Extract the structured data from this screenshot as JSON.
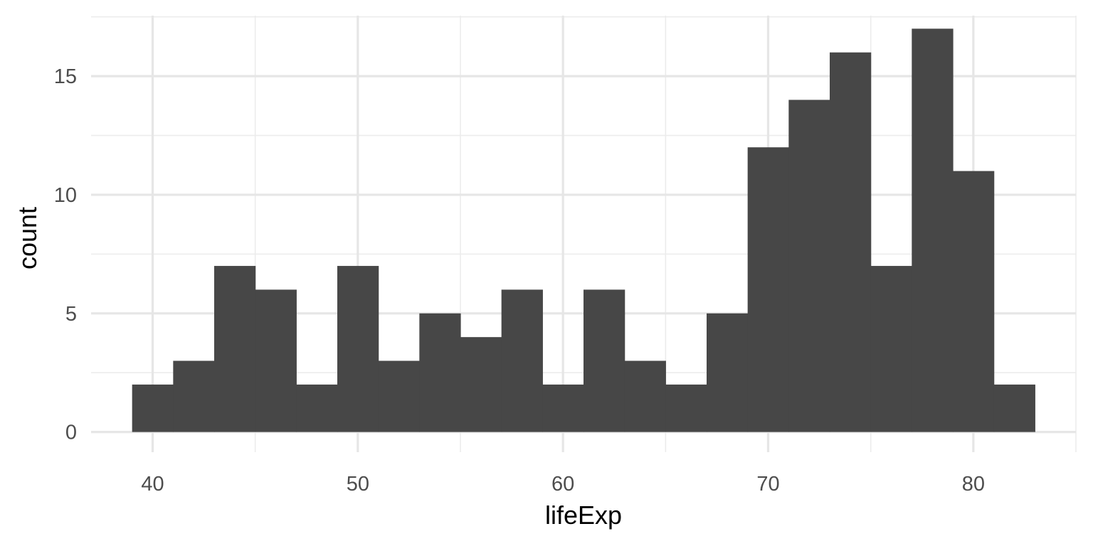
{
  "chart_data": {
    "type": "bar",
    "title": "",
    "xlabel": "lifeExp",
    "ylabel": "count",
    "xlim": [
      37.0,
      85.0
    ],
    "ylim": [
      -0.85,
      17.55
    ],
    "x_ticks": [
      40,
      50,
      60,
      70,
      80
    ],
    "x_tick_labels": [
      "40",
      "50",
      "60",
      "70",
      "80"
    ],
    "y_ticks": [
      0,
      5,
      10,
      15
    ],
    "y_tick_labels": [
      "0",
      "5",
      "10",
      "15"
    ],
    "grid": true,
    "legend": "none",
    "bar_color": "#474747",
    "bins": [
      {
        "x0": 39,
        "x1": 41,
        "count": 2
      },
      {
        "x0": 41,
        "x1": 43,
        "count": 3
      },
      {
        "x0": 43,
        "x1": 45,
        "count": 7
      },
      {
        "x0": 45,
        "x1": 47,
        "count": 6
      },
      {
        "x0": 47,
        "x1": 49,
        "count": 2
      },
      {
        "x0": 49,
        "x1": 51,
        "count": 7
      },
      {
        "x0": 51,
        "x1": 53,
        "count": 3
      },
      {
        "x0": 53,
        "x1": 55,
        "count": 5
      },
      {
        "x0": 55,
        "x1": 57,
        "count": 4
      },
      {
        "x0": 57,
        "x1": 59,
        "count": 6
      },
      {
        "x0": 59,
        "x1": 61,
        "count": 2
      },
      {
        "x0": 61,
        "x1": 63,
        "count": 6
      },
      {
        "x0": 63,
        "x1": 65,
        "count": 3
      },
      {
        "x0": 65,
        "x1": 67,
        "count": 2
      },
      {
        "x0": 67,
        "x1": 69,
        "count": 5
      },
      {
        "x0": 69,
        "x1": 71,
        "count": 12
      },
      {
        "x0": 71,
        "x1": 73,
        "count": 14
      },
      {
        "x0": 73,
        "x1": 75,
        "count": 16
      },
      {
        "x0": 75,
        "x1": 77,
        "count": 7
      },
      {
        "x0": 77,
        "x1": 79,
        "count": 17
      },
      {
        "x0": 79,
        "x1": 81,
        "count": 11
      },
      {
        "x0": 81,
        "x1": 83,
        "count": 2
      }
    ]
  }
}
